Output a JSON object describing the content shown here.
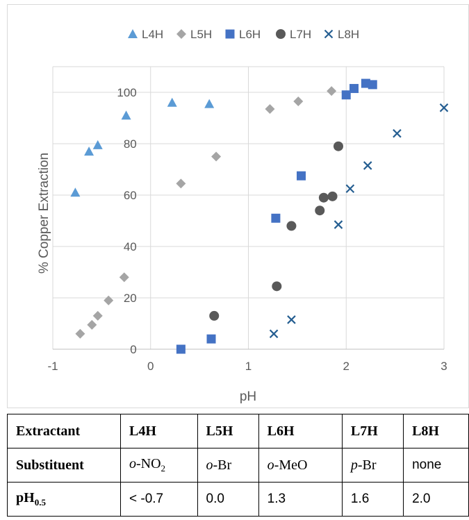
{
  "chart_data": {
    "type": "scatter",
    "xlabel": "pH",
    "ylabel": "% Copper Extraction",
    "xlim": [
      -1,
      3
    ],
    "ylim": [
      0,
      110
    ],
    "x_ticks": [
      -1,
      0,
      1,
      2,
      3
    ],
    "y_ticks": [
      0,
      20,
      40,
      60,
      80,
      100
    ],
    "grid": true,
    "legend_position": "top",
    "series": [
      {
        "name": "L4H",
        "marker": "triangle",
        "color": "#5b9bd5",
        "points": [
          [
            -0.77,
            61
          ],
          [
            -0.63,
            77
          ],
          [
            -0.54,
            79.5
          ],
          [
            -0.25,
            91
          ],
          [
            0.22,
            96
          ],
          [
            0.6,
            95.5
          ]
        ]
      },
      {
        "name": "L5H",
        "marker": "diamond",
        "color": "#a5a5a5",
        "points": [
          [
            -0.72,
            6
          ],
          [
            -0.6,
            9.5
          ],
          [
            -0.54,
            13
          ],
          [
            -0.43,
            19
          ],
          [
            -0.27,
            28
          ],
          [
            0.31,
            64.5
          ],
          [
            0.67,
            75
          ],
          [
            1.22,
            93.5
          ],
          [
            1.51,
            96.5
          ],
          [
            1.85,
            100.5
          ]
        ]
      },
      {
        "name": "L6H",
        "marker": "square",
        "color": "#4472c4",
        "points": [
          [
            0.31,
            0
          ],
          [
            0.62,
            4
          ],
          [
            1.28,
            51
          ],
          [
            1.54,
            67.5
          ],
          [
            2.0,
            99
          ],
          [
            2.08,
            101.5
          ],
          [
            2.2,
            103.5
          ],
          [
            2.27,
            103
          ]
        ]
      },
      {
        "name": "L7H",
        "marker": "circle",
        "color": "#595959",
        "points": [
          [
            0.65,
            13
          ],
          [
            1.29,
            24.5
          ],
          [
            1.44,
            48
          ],
          [
            1.73,
            54
          ],
          [
            1.77,
            59
          ],
          [
            1.86,
            59.5
          ],
          [
            1.92,
            79
          ]
        ]
      },
      {
        "name": "L8H",
        "marker": "x",
        "color": "#255e91",
        "points": [
          [
            1.26,
            6
          ],
          [
            1.44,
            11.5
          ],
          [
            1.92,
            48.5
          ],
          [
            2.04,
            62.5
          ],
          [
            2.22,
            71.5
          ],
          [
            2.52,
            84
          ],
          [
            3.0,
            94
          ]
        ]
      }
    ]
  },
  "table": {
    "header": [
      "Extractant",
      "L4H",
      "L5H",
      "L6H",
      "L7H",
      "L8H"
    ],
    "substituent_label": "Substituent",
    "substituents": [
      {
        "prefix": "o",
        "rest": "-NO",
        "sub": "2"
      },
      {
        "prefix": "o",
        "rest": "-Br",
        "sub": ""
      },
      {
        "prefix": "o",
        "rest": "-MeO",
        "sub": ""
      },
      {
        "prefix": "p",
        "rest": "-Br",
        "sub": ""
      },
      {
        "prefix": "",
        "rest": "none",
        "sub": ""
      }
    ],
    "ph_label": "pH",
    "ph_label_sub": "0.5",
    "ph_values": [
      "< -0.7",
      "0.0",
      "1.3",
      "1.6",
      "2.0"
    ]
  }
}
